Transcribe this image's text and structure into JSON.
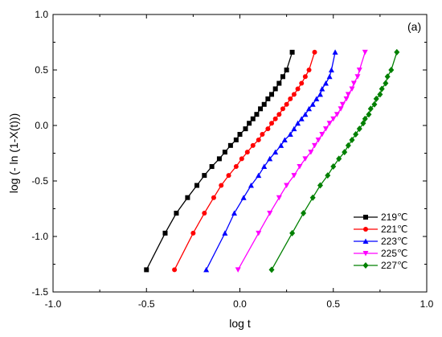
{
  "chart_data": {
    "type": "line",
    "panel_label": "(a)",
    "xlabel": "log t",
    "ylabel": "log (- ln (1-X(t)))",
    "xlim": [
      -1.0,
      1.0
    ],
    "ylim": [
      -1.5,
      1.0
    ],
    "xticks": [
      -1.0,
      -0.5,
      0.0,
      0.5,
      1.0
    ],
    "yticks": [
      -1.5,
      -1.0,
      -0.5,
      0.0,
      0.5,
      1.0
    ],
    "xtick_labels": [
      "-1.0",
      "-0.5",
      "0.0",
      "0.5",
      "1.0"
    ],
    "ytick_labels": [
      "-1.5",
      "-1.0",
      "-0.5",
      "0.0",
      "0.5",
      "1.0"
    ],
    "grid": false,
    "legend_position": "bottom-right",
    "series": [
      {
        "name": "219℃",
        "color": "#000000",
        "marker": "square",
        "x": [
          -0.5,
          -0.4,
          -0.34,
          -0.28,
          -0.23,
          -0.19,
          -0.15,
          -0.11,
          -0.08,
          -0.05,
          -0.02,
          0.0,
          0.03,
          0.05,
          0.07,
          0.09,
          0.11,
          0.13,
          0.15,
          0.17,
          0.19,
          0.21,
          0.23,
          0.25,
          0.28
        ],
        "y": [
          -1.3,
          -0.97,
          -0.79,
          -0.65,
          -0.54,
          -0.45,
          -0.37,
          -0.3,
          -0.24,
          -0.18,
          -0.13,
          -0.08,
          -0.03,
          0.02,
          0.06,
          0.1,
          0.15,
          0.19,
          0.24,
          0.28,
          0.33,
          0.38,
          0.44,
          0.5,
          0.66
        ]
      },
      {
        "name": "221℃",
        "color": "#ff0000",
        "marker": "circle",
        "x": [
          -0.35,
          -0.25,
          -0.19,
          -0.14,
          -0.1,
          -0.06,
          -0.02,
          0.01,
          0.04,
          0.07,
          0.1,
          0.12,
          0.15,
          0.17,
          0.19,
          0.21,
          0.23,
          0.25,
          0.27,
          0.29,
          0.31,
          0.33,
          0.35,
          0.37,
          0.4
        ],
        "y": [
          -1.3,
          -0.97,
          -0.79,
          -0.65,
          -0.54,
          -0.45,
          -0.37,
          -0.3,
          -0.24,
          -0.18,
          -0.13,
          -0.08,
          -0.03,
          0.02,
          0.06,
          0.1,
          0.15,
          0.19,
          0.24,
          0.28,
          0.33,
          0.38,
          0.44,
          0.5,
          0.66
        ]
      },
      {
        "name": "223℃",
        "color": "#0000ff",
        "marker": "triangle-up",
        "x": [
          -0.18,
          -0.08,
          -0.03,
          0.02,
          0.06,
          0.1,
          0.13,
          0.16,
          0.19,
          0.22,
          0.24,
          0.27,
          0.29,
          0.31,
          0.33,
          0.35,
          0.37,
          0.39,
          0.41,
          0.43,
          0.44,
          0.46,
          0.48,
          0.49,
          0.51
        ],
        "y": [
          -1.3,
          -0.97,
          -0.79,
          -0.65,
          -0.54,
          -0.45,
          -0.37,
          -0.3,
          -0.24,
          -0.18,
          -0.13,
          -0.08,
          -0.03,
          0.02,
          0.06,
          0.1,
          0.15,
          0.19,
          0.24,
          0.28,
          0.33,
          0.38,
          0.44,
          0.5,
          0.66
        ]
      },
      {
        "name": "225℃",
        "color": "#ff00ff",
        "marker": "triangle-down",
        "x": [
          -0.01,
          0.1,
          0.16,
          0.21,
          0.25,
          0.29,
          0.32,
          0.35,
          0.38,
          0.4,
          0.42,
          0.44,
          0.46,
          0.48,
          0.5,
          0.52,
          0.54,
          0.55,
          0.57,
          0.58,
          0.6,
          0.61,
          0.63,
          0.64,
          0.67
        ],
        "y": [
          -1.3,
          -0.97,
          -0.79,
          -0.65,
          -0.54,
          -0.45,
          -0.37,
          -0.3,
          -0.24,
          -0.18,
          -0.13,
          -0.08,
          -0.03,
          0.02,
          0.06,
          0.1,
          0.15,
          0.19,
          0.24,
          0.28,
          0.33,
          0.38,
          0.44,
          0.5,
          0.66
        ]
      },
      {
        "name": "227℃",
        "color": "#008000",
        "marker": "diamond",
        "x": [
          0.17,
          0.28,
          0.34,
          0.39,
          0.43,
          0.47,
          0.5,
          0.53,
          0.56,
          0.58,
          0.6,
          0.62,
          0.64,
          0.66,
          0.67,
          0.69,
          0.7,
          0.72,
          0.73,
          0.75,
          0.76,
          0.78,
          0.79,
          0.81,
          0.84
        ],
        "y": [
          -1.3,
          -0.97,
          -0.79,
          -0.65,
          -0.54,
          -0.45,
          -0.37,
          -0.3,
          -0.24,
          -0.18,
          -0.13,
          -0.08,
          -0.03,
          0.02,
          0.06,
          0.1,
          0.15,
          0.19,
          0.24,
          0.28,
          0.33,
          0.38,
          0.44,
          0.5,
          0.66
        ]
      }
    ]
  }
}
